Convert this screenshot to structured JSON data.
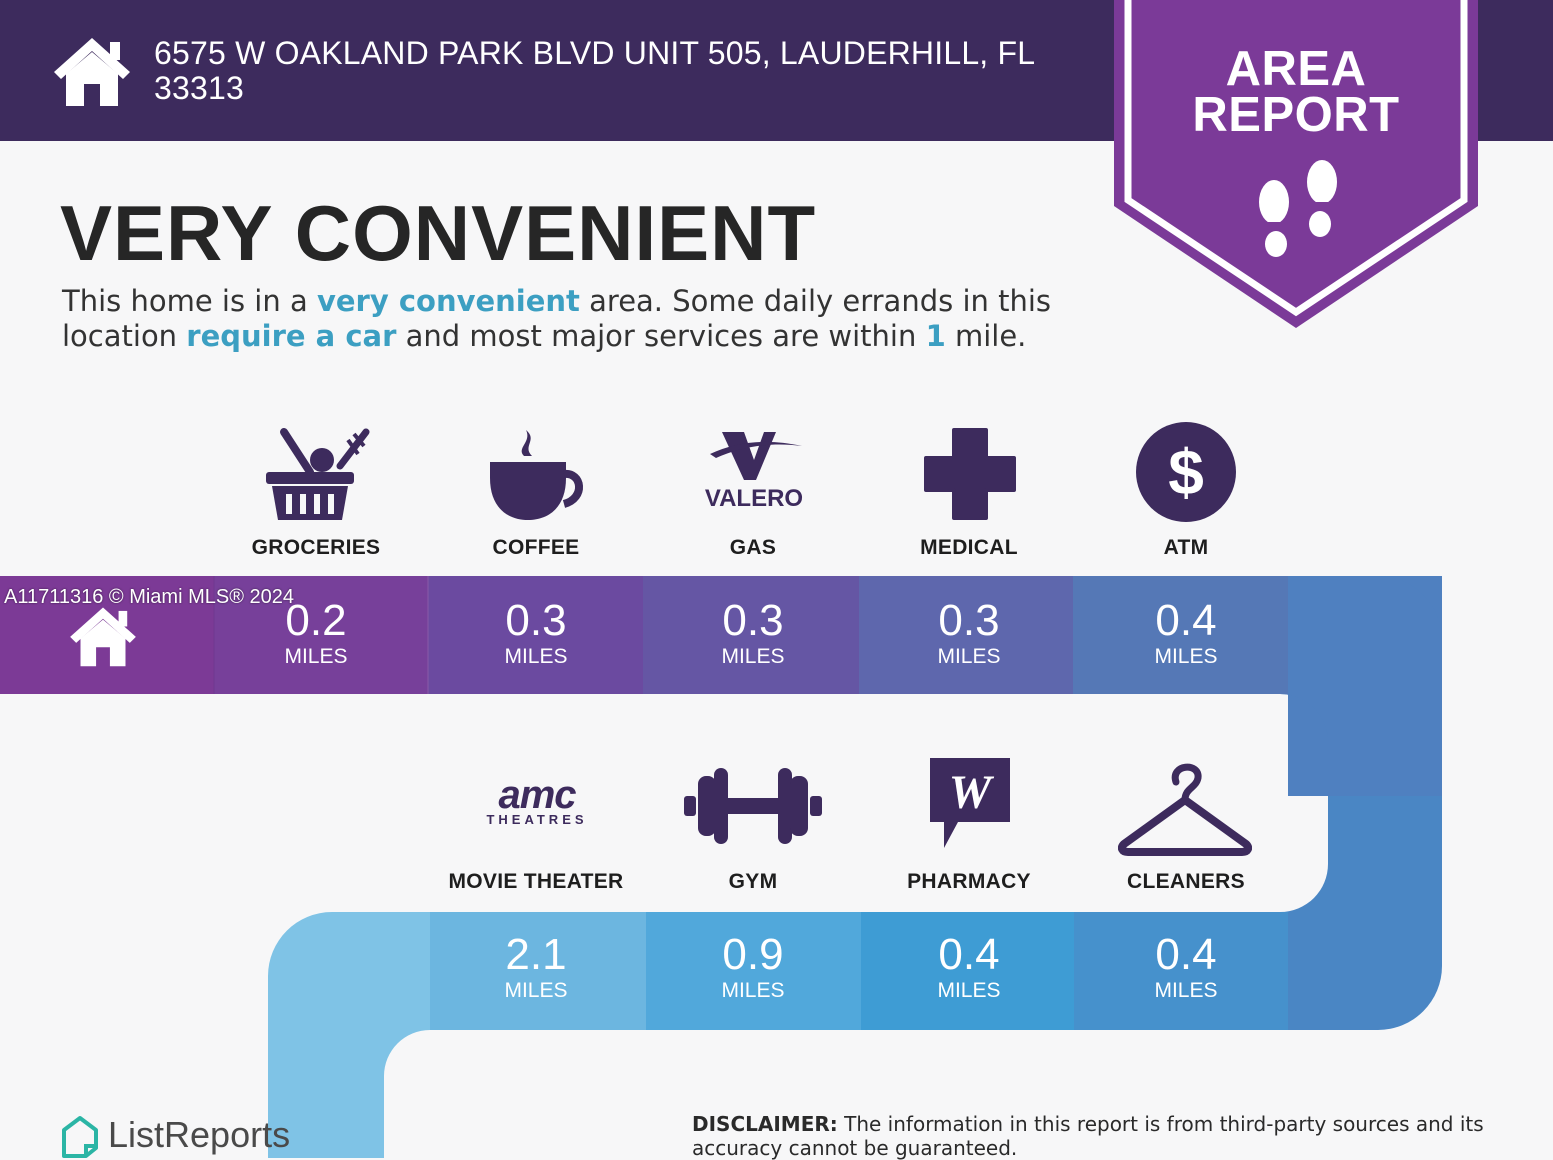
{
  "header": {
    "address": "6575 W OAKLAND PARK BLVD UNIT 505, LAUDERHILL, FL 33313"
  },
  "badge": {
    "line1": "AREA",
    "line2": "REPORT"
  },
  "headline": "VERY CONVENIENT",
  "summary": {
    "part1": "This home is in a ",
    "highlight1": "very convenient",
    "part2": " area. Some daily errands in this location ",
    "highlight2": "require a car",
    "part3": " and most major services are within ",
    "highlight3": "1",
    "part4": " mile."
  },
  "colors": {
    "header_bg": "#3d2b5d",
    "badge": "#7b3a98",
    "highlight": "#3c9fc2",
    "icon": "#3d2b5d"
  },
  "services_row1": [
    {
      "label": "GROCERIES",
      "distance": "0.2",
      "unit": "MILES",
      "icon": "grocery-basket-icon"
    },
    {
      "label": "COFFEE",
      "distance": "0.3",
      "unit": "MILES",
      "icon": "coffee-cup-icon"
    },
    {
      "label": "GAS",
      "distance": "0.3",
      "unit": "MILES",
      "icon": "valero-logo-icon",
      "brand": "VALERO"
    },
    {
      "label": "MEDICAL",
      "distance": "0.3",
      "unit": "MILES",
      "icon": "medical-cross-icon"
    },
    {
      "label": "ATM",
      "distance": "0.4",
      "unit": "MILES",
      "icon": "dollar-coin-icon"
    }
  ],
  "services_row2": [
    {
      "label": "MOVIE THEATER",
      "distance": "2.1",
      "unit": "MILES",
      "icon": "amc-theatres-logo-icon",
      "brand": "amc",
      "brand_sub": "THEATRES"
    },
    {
      "label": "GYM",
      "distance": "0.9",
      "unit": "MILES",
      "icon": "dumbbell-icon"
    },
    {
      "label": "PHARMACY",
      "distance": "0.4",
      "unit": "MILES",
      "icon": "walgreens-logo-icon",
      "brand": "W"
    },
    {
      "label": "CLEANERS",
      "distance": "0.4",
      "unit": "MILES",
      "icon": "hanger-icon"
    }
  ],
  "watermark": "A11711316 © Miami MLS® 2024",
  "footer": {
    "logo": "ListReports",
    "disclaimer_label": "DISCLAIMER:",
    "disclaimer_text": " The information in this report is from third-party sources and its accuracy cannot be guaranteed."
  }
}
